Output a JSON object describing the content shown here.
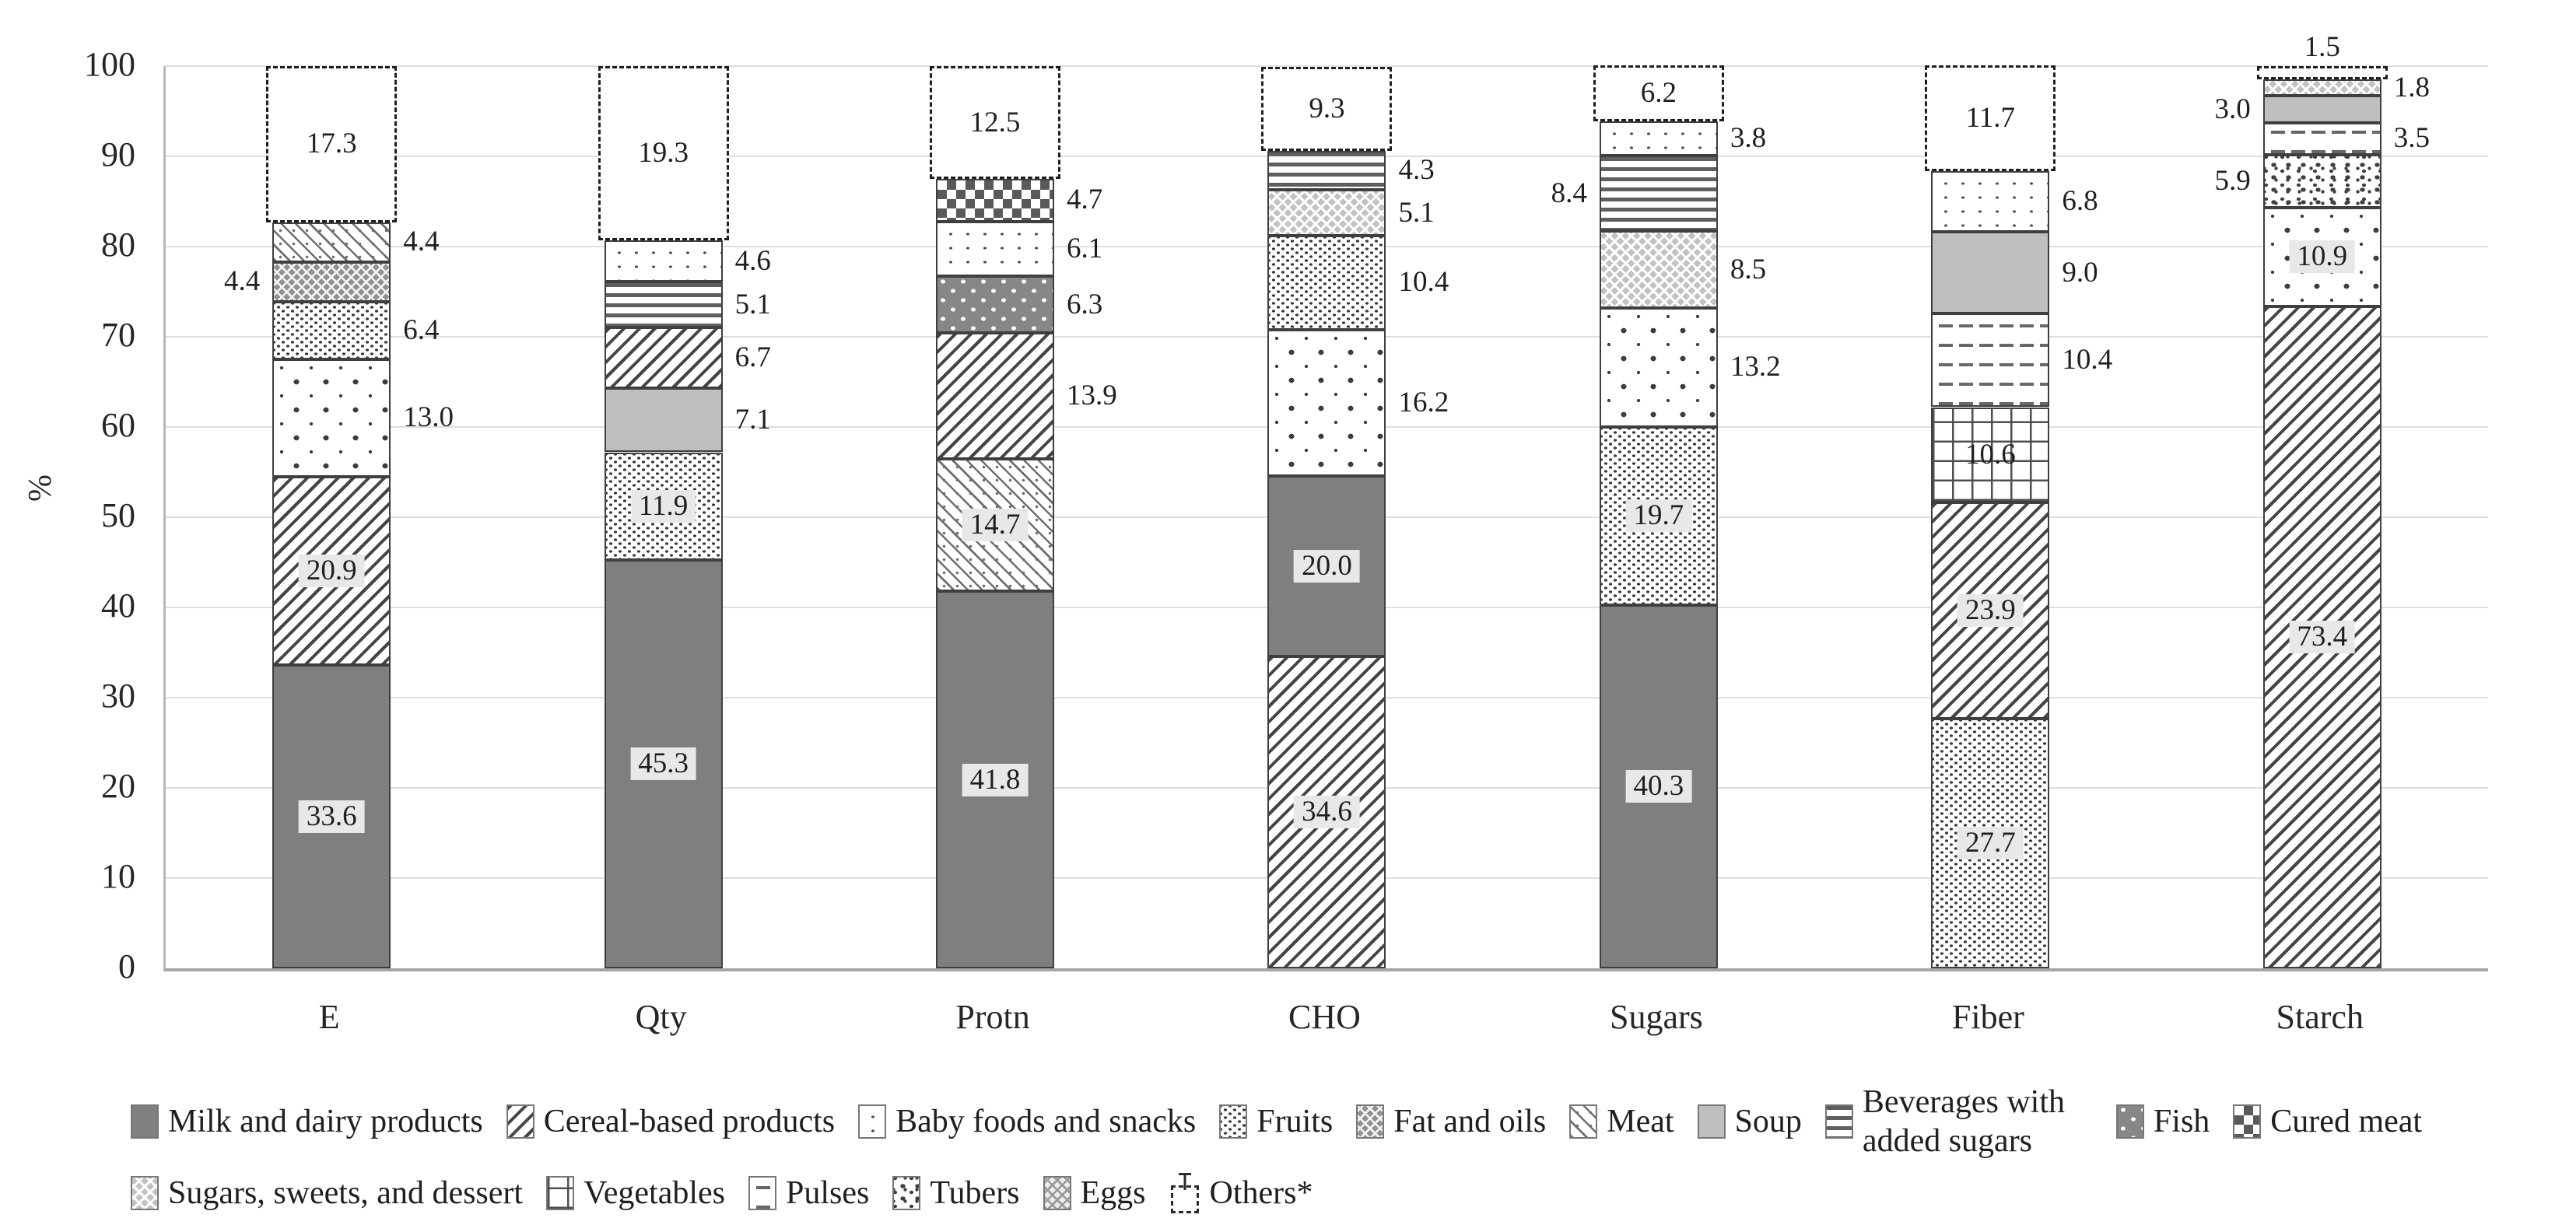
{
  "y_axis": {
    "label": "%",
    "ticks": [
      0,
      10,
      20,
      30,
      40,
      50,
      60,
      70,
      80,
      90,
      100
    ]
  },
  "x_labels": [
    "E",
    "Qty",
    "Protn",
    "CHO",
    "Sugars",
    "Fiber",
    "Starch"
  ],
  "colors": {
    "bar_outline": "#3f3f3f",
    "gridline": "#dedede",
    "label_box_bg": "#e8e8e8",
    "solid_dark_gray": "#7f7f7f",
    "solid_light_gray": "#bfbfbf",
    "text": "#1f1f1f"
  },
  "legend": {
    "items": [
      {
        "label": "Milk and dairy products",
        "pattern": "milk"
      },
      {
        "label": "Cereal-based products",
        "pattern": "cereal"
      },
      {
        "label": "Baby foods and snacks",
        "pattern": "dots-fine"
      },
      {
        "label": "Fruits",
        "pattern": "fruits"
      },
      {
        "label": "Fat and oils",
        "pattern": "fatoils"
      },
      {
        "label": "Meat",
        "pattern": "meat"
      },
      {
        "label": "Soup",
        "pattern": "soup"
      },
      {
        "label": "Beverages with added sugars",
        "pattern": "bev",
        "wrap": true
      },
      {
        "label": "Fish",
        "pattern": "fish"
      },
      {
        "label": "Cured meat",
        "pattern": "cured"
      },
      {
        "label": "Sugars, sweets, and dessert",
        "pattern": "sweets"
      },
      {
        "label": "Vegetables",
        "pattern": "veg"
      },
      {
        "label": "Pulses",
        "pattern": "pulses"
      },
      {
        "label": "Tubers",
        "pattern": "tubers"
      },
      {
        "label": "Eggs",
        "pattern": "eggs"
      },
      {
        "label": "Others*",
        "pattern": "others-glyph"
      }
    ]
  },
  "chart_data": {
    "type": "bar",
    "subtype": "stacked-percent-column",
    "title": "",
    "xlabel": "",
    "ylabel": "%",
    "ylim": [
      0,
      100
    ],
    "grid": true,
    "legend_position": "bottom",
    "categories": [
      "E",
      "Qty",
      "Protn",
      "CHO",
      "Sugars",
      "Fiber",
      "Starch"
    ],
    "bars": [
      {
        "category": "E",
        "segments": [
          {
            "series": "Milk and dairy products",
            "value": 33.6,
            "label": "33.6",
            "pattern": "milk",
            "label_pos": "inside",
            "boxed": true
          },
          {
            "series": "Cereal-based products",
            "value": 20.9,
            "label": "20.9",
            "pattern": "cereal",
            "label_pos": "inside",
            "boxed": true
          },
          {
            "series": "Baby foods and snacks",
            "value": 13.0,
            "label": "13.0",
            "pattern": "dots",
            "label_pos": "right",
            "boxed": false
          },
          {
            "series": "Fruits",
            "value": 6.4,
            "label": "6.4",
            "pattern": "fruits",
            "label_pos": "right",
            "boxed": false
          },
          {
            "series": "Fat and oils",
            "value": 4.4,
            "label": "4.4",
            "pattern": "fatoils",
            "label_pos": "left",
            "boxed": false
          },
          {
            "series": "Meat",
            "value": 4.4,
            "label": "4.4",
            "pattern": "meat",
            "label_pos": "right",
            "boxed": false
          },
          {
            "series": "Others*",
            "value": 17.3,
            "label": "17.3",
            "pattern": "others",
            "label_pos": "inside",
            "boxed": false
          }
        ]
      },
      {
        "category": "Qty",
        "segments": [
          {
            "series": "Milk and dairy products",
            "value": 45.3,
            "label": "45.3",
            "pattern": "milk",
            "label_pos": "inside",
            "boxed": true
          },
          {
            "series": "Fruits",
            "value": 11.9,
            "label": "11.9",
            "pattern": "fruits",
            "label_pos": "inside",
            "boxed": true
          },
          {
            "series": "Soup",
            "value": 7.1,
            "label": "7.1",
            "pattern": "soup",
            "label_pos": "right",
            "boxed": false
          },
          {
            "series": "Cereal-based products",
            "value": 6.7,
            "label": "6.7",
            "pattern": "cereal",
            "label_pos": "right",
            "boxed": false
          },
          {
            "series": "Beverages with added sugars",
            "value": 5.1,
            "label": "5.1",
            "pattern": "bev",
            "label_pos": "right",
            "boxed": false
          },
          {
            "series": "Baby foods and snacks",
            "value": 4.6,
            "label": "4.6",
            "pattern": "dots-fine",
            "label_pos": "right",
            "boxed": false
          },
          {
            "series": "Others*",
            "value": 19.3,
            "label": "19.3",
            "pattern": "others",
            "label_pos": "inside",
            "boxed": false
          }
        ]
      },
      {
        "category": "Protn",
        "segments": [
          {
            "series": "Milk and dairy products",
            "value": 41.8,
            "label": "41.8",
            "pattern": "milk",
            "label_pos": "inside",
            "boxed": true
          },
          {
            "series": "Meat",
            "value": 14.7,
            "label": "14.7",
            "pattern": "meat",
            "label_pos": "inside",
            "boxed": true
          },
          {
            "series": "Cereal-based products",
            "value": 13.9,
            "label": "13.9",
            "pattern": "cereal",
            "label_pos": "right",
            "boxed": false
          },
          {
            "series": "Fish",
            "value": 6.3,
            "label": "6.3",
            "pattern": "fish",
            "label_pos": "right",
            "boxed": false
          },
          {
            "series": "Baby foods and snacks",
            "value": 6.1,
            "label": "6.1",
            "pattern": "dots-fine",
            "label_pos": "right",
            "boxed": false
          },
          {
            "series": "Cured meat",
            "value": 4.7,
            "label": "4.7",
            "pattern": "cured",
            "label_pos": "right",
            "boxed": false
          },
          {
            "series": "Others*",
            "value": 12.5,
            "label": "12.5",
            "pattern": "others",
            "label_pos": "inside",
            "boxed": false
          }
        ]
      },
      {
        "category": "CHO",
        "segments": [
          {
            "series": "Cereal-based products",
            "value": 34.6,
            "label": "34.6",
            "pattern": "cereal",
            "label_pos": "inside",
            "boxed": true
          },
          {
            "series": "Milk and dairy products",
            "value": 20.0,
            "label": "20.0",
            "pattern": "milk",
            "label_pos": "inside",
            "boxed": true
          },
          {
            "series": "Baby foods and snacks",
            "value": 16.2,
            "label": "16.2",
            "pattern": "dots",
            "label_pos": "right",
            "boxed": false
          },
          {
            "series": "Fruits",
            "value": 10.4,
            "label": "10.4",
            "pattern": "fruits",
            "label_pos": "right",
            "boxed": false
          },
          {
            "series": "Sugars, sweets, and dessert",
            "value": 5.1,
            "label": "5.1",
            "pattern": "sweets",
            "label_pos": "right",
            "boxed": false
          },
          {
            "series": "Beverages with added sugars",
            "value": 4.3,
            "label": "4.3",
            "pattern": "bev",
            "label_pos": "right",
            "boxed": false
          },
          {
            "series": "Others*",
            "value": 9.3,
            "label": "9.3",
            "pattern": "others",
            "label_pos": "inside",
            "boxed": false
          }
        ]
      },
      {
        "category": "Sugars",
        "segments": [
          {
            "series": "Milk and dairy products",
            "value": 40.3,
            "label": "40.3",
            "pattern": "milk",
            "label_pos": "inside",
            "boxed": true
          },
          {
            "series": "Fruits",
            "value": 19.7,
            "label": "19.7",
            "pattern": "fruits",
            "label_pos": "inside",
            "boxed": true
          },
          {
            "series": "Baby foods and snacks",
            "value": 13.2,
            "label": "13.2",
            "pattern": "dots",
            "label_pos": "right",
            "boxed": false
          },
          {
            "series": "Sugars, sweets, and dessert",
            "value": 8.5,
            "label": "8.5",
            "pattern": "sweets",
            "label_pos": "right",
            "boxed": false
          },
          {
            "series": "Beverages with added sugars",
            "value": 8.4,
            "label": "8.4",
            "pattern": "bev",
            "label_pos": "left",
            "boxed": false
          },
          {
            "series": "Cereal-based products",
            "value": 3.8,
            "label": "3.8",
            "pattern": "dots-fine",
            "label_pos": "right",
            "boxed": false
          },
          {
            "series": "Others*",
            "value": 6.2,
            "label": "6.2",
            "pattern": "others",
            "label_pos": "inside",
            "boxed": false
          }
        ]
      },
      {
        "category": "Fiber",
        "segments": [
          {
            "series": "Fruits",
            "value": 27.7,
            "label": "27.7",
            "pattern": "fruits",
            "label_pos": "inside",
            "boxed": true
          },
          {
            "series": "Cereal-based products",
            "value": 23.9,
            "label": "23.9",
            "pattern": "cereal",
            "label_pos": "inside",
            "boxed": true
          },
          {
            "series": "Vegetables",
            "value": 10.6,
            "label": "10.6",
            "pattern": "veg",
            "label_pos": "inside",
            "boxed": false
          },
          {
            "series": "Pulses",
            "value": 10.4,
            "label": "10.4",
            "pattern": "pulses",
            "label_pos": "right",
            "boxed": false
          },
          {
            "series": "Soup",
            "value": 9.0,
            "label": "9.0",
            "pattern": "soup",
            "label_pos": "right",
            "boxed": false
          },
          {
            "series": "Baby foods and snacks",
            "value": 6.8,
            "label": "6.8",
            "pattern": "dots-fine",
            "label_pos": "right",
            "boxed": false
          },
          {
            "series": "Others*",
            "value": 11.7,
            "label": "11.7",
            "pattern": "others",
            "label_pos": "inside",
            "boxed": false
          }
        ]
      },
      {
        "category": "Starch",
        "segments": [
          {
            "series": "Cereal-based products",
            "value": 73.4,
            "label": "73.4",
            "pattern": "cereal",
            "label_pos": "inside",
            "boxed": true
          },
          {
            "series": "Baby foods and snacks",
            "value": 10.9,
            "label": "10.9",
            "pattern": "dots",
            "label_pos": "inside",
            "boxed": true
          },
          {
            "series": "Tubers",
            "value": 5.9,
            "label": "5.9",
            "pattern": "tubers",
            "label_pos": "left",
            "boxed": false
          },
          {
            "series": "Pulses",
            "value": 3.5,
            "label": "3.5",
            "pattern": "pulses",
            "label_pos": "right",
            "boxed": false
          },
          {
            "series": "Soup",
            "value": 3.0,
            "label": "3.0",
            "pattern": "soup",
            "label_pos": "left",
            "boxed": false
          },
          {
            "series": "Sugars, sweets, and dessert",
            "value": 1.8,
            "label": "1.8",
            "pattern": "sweets",
            "label_pos": "right",
            "boxed": false
          },
          {
            "series": "Others*",
            "value": 1.5,
            "label": "1.5",
            "pattern": "others",
            "label_pos": "above",
            "boxed": false
          }
        ]
      }
    ]
  }
}
